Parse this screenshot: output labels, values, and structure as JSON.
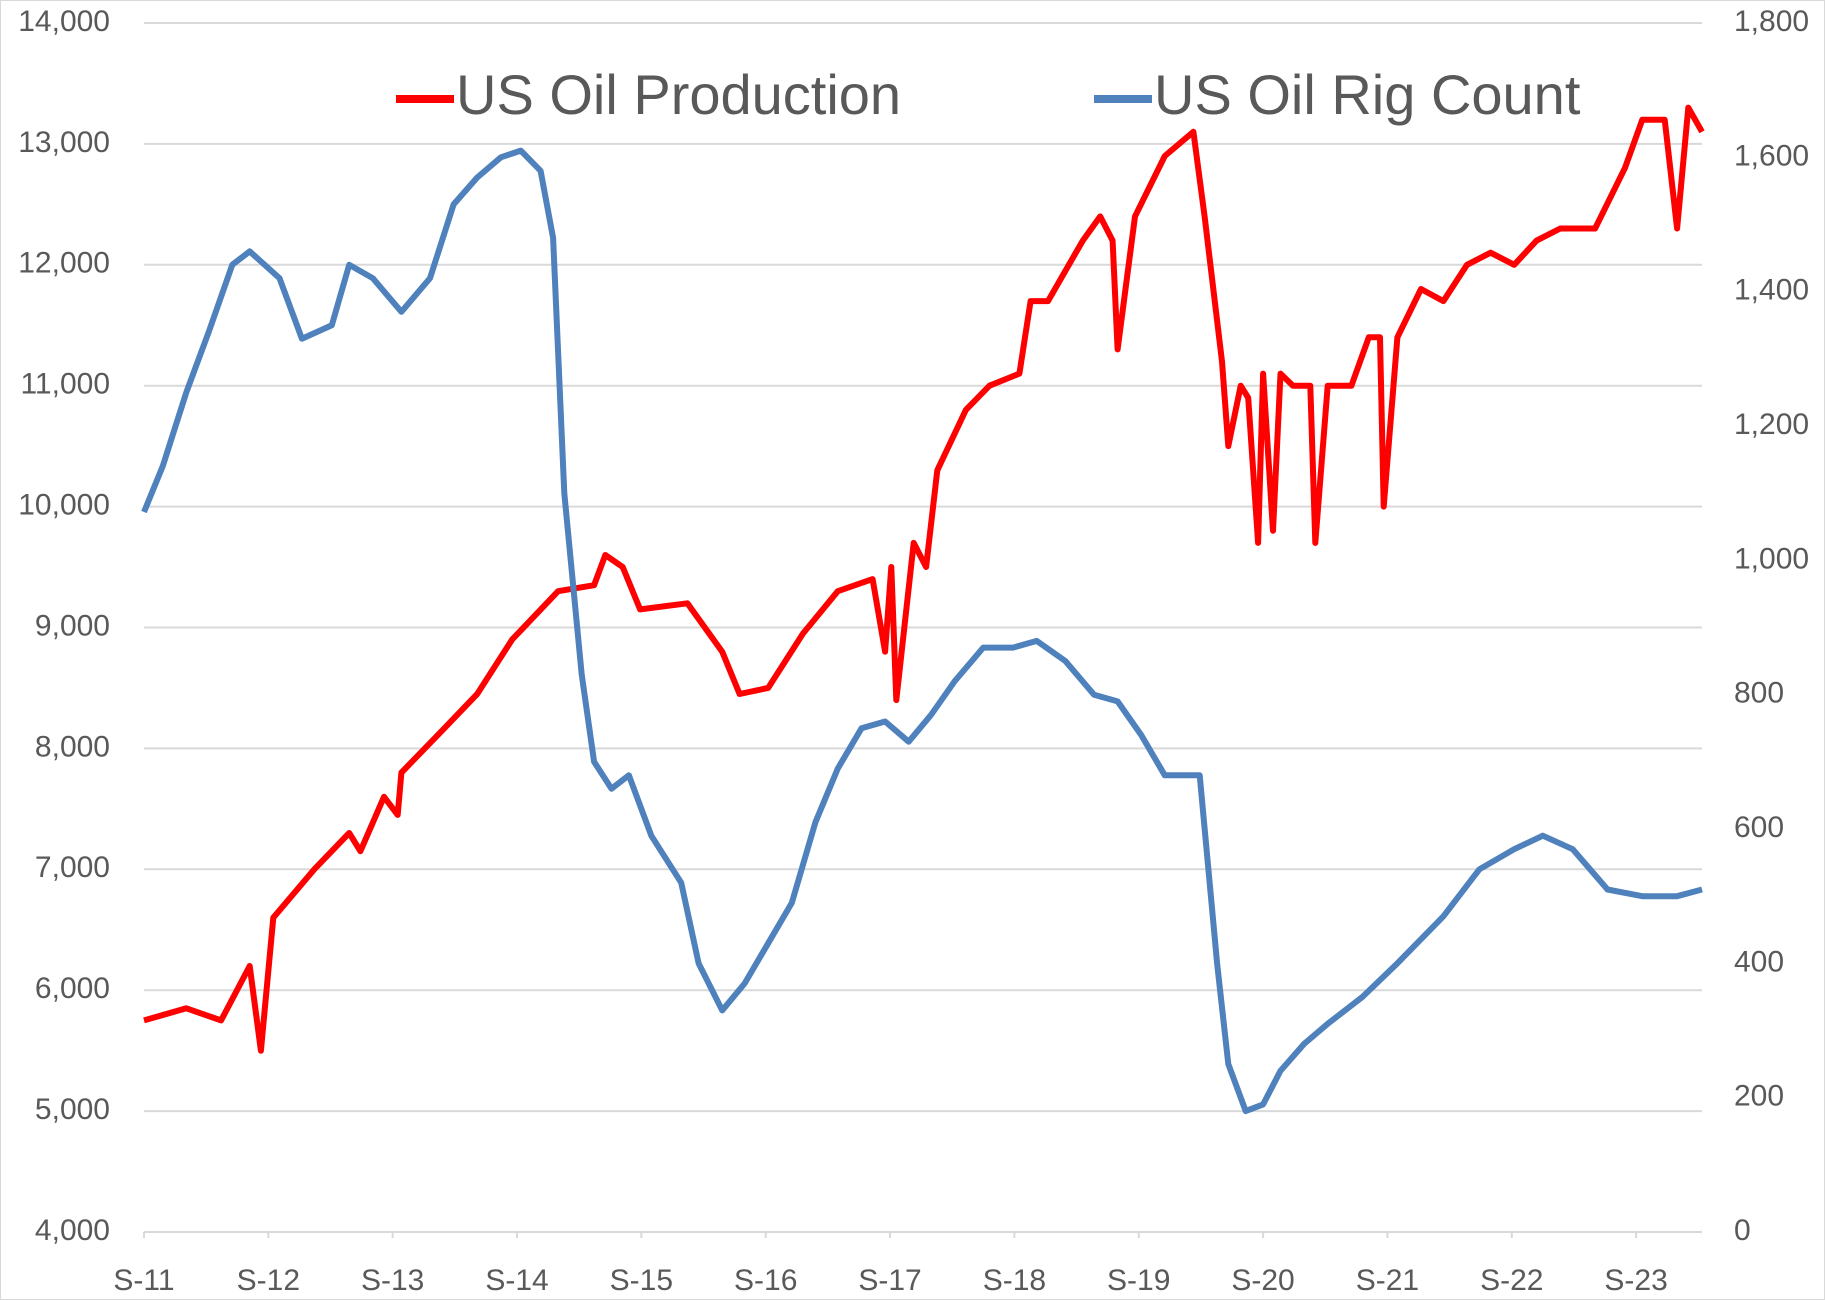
{
  "chart_data": {
    "type": "line",
    "series": [
      {
        "name": "US Oil Production",
        "color": "#ff0000",
        "axis": "y",
        "x": [
          2011.67,
          2012.01,
          2012.29,
          2012.52,
          2012.61,
          2012.71,
          2013.04,
          2013.32,
          2013.41,
          2013.6,
          2013.71,
          2013.74,
          2014.07,
          2014.35,
          2014.63,
          2015.0,
          2015.29,
          2015.38,
          2015.52,
          2015.66,
          2016.04,
          2016.32,
          2016.46,
          2016.69,
          2016.97,
          2017.25,
          2017.53,
          2017.63,
          2017.68,
          2017.72,
          2017.86,
          2017.96,
          2018.05,
          2018.28,
          2018.47,
          2018.71,
          2018.8,
          2018.94,
          2019.22,
          2019.36,
          2019.46,
          2019.5,
          2019.64,
          2019.88,
          2020.11,
          2020.2,
          2020.34,
          2020.39,
          2020.49,
          2020.55,
          2020.63,
          2020.67,
          2020.75,
          2020.81,
          2020.91,
          2021.05,
          2021.09,
          2021.19,
          2021.38,
          2021.52,
          2021.61,
          2021.64,
          2021.75,
          2021.94,
          2022.12,
          2022.31,
          2022.5,
          2022.69,
          2022.87,
          2023.06,
          2023.34,
          2023.58,
          2023.72,
          2023.9,
          2024.0,
          2024.09,
          2024.2
        ],
        "values": [
          5750,
          5850,
          5750,
          6200,
          5500,
          6600,
          7000,
          7300,
          7150,
          7600,
          7450,
          7800,
          8150,
          8450,
          8900,
          9300,
          9350,
          9600,
          9500,
          9150,
          9200,
          8800,
          8450,
          8500,
          8950,
          9300,
          9400,
          8800,
          9500,
          8400,
          9700,
          9500,
          10300,
          10800,
          11000,
          11100,
          11700,
          11700,
          12200,
          12400,
          12200,
          11300,
          12400,
          12900,
          13100,
          12400,
          11200,
          10500,
          11000,
          10900,
          9700,
          11100,
          9800,
          11100,
          11000,
          11000,
          9700,
          11000,
          11000,
          11400,
          11400,
          10000,
          11400,
          11800,
          11700,
          12000,
          12100,
          12000,
          12200,
          12300,
          12300,
          12800,
          13200,
          13200,
          12300,
          13300,
          13100
        ]
      },
      {
        "name": "US Oil Rig Count",
        "color": "#4f81bd",
        "axis": "y2",
        "x": [
          2011.67,
          2011.82,
          2012.01,
          2012.19,
          2012.38,
          2012.52,
          2012.76,
          2012.94,
          2013.18,
          2013.32,
          2013.51,
          2013.74,
          2013.97,
          2014.16,
          2014.35,
          2014.54,
          2014.7,
          2014.86,
          2014.96,
          2015.05,
          2015.19,
          2015.29,
          2015.43,
          2015.57,
          2015.75,
          2015.99,
          2016.13,
          2016.32,
          2016.5,
          2016.69,
          2016.88,
          2017.07,
          2017.25,
          2017.44,
          2017.63,
          2017.82,
          2018.0,
          2018.19,
          2018.42,
          2018.66,
          2018.85,
          2019.08,
          2019.31,
          2019.5,
          2019.69,
          2019.88,
          2020.16,
          2020.3,
          2020.39,
          2020.53,
          2020.67,
          2020.81,
          2021.0,
          2021.19,
          2021.47,
          2021.75,
          2022.12,
          2022.41,
          2022.69,
          2022.92,
          2023.16,
          2023.44,
          2023.72,
          2024.0,
          2024.2
        ],
        "values": [
          1072,
          1140,
          1250,
          1340,
          1440,
          1460,
          1420,
          1330,
          1350,
          1440,
          1420,
          1370,
          1420,
          1530,
          1570,
          1600,
          1610,
          1580,
          1480,
          1100,
          830,
          700,
          660,
          680,
          590,
          520,
          400,
          330,
          370,
          430,
          490,
          610,
          690,
          750,
          760,
          730,
          770,
          820,
          870,
          870,
          880,
          850,
          800,
          790,
          740,
          680,
          680,
          400,
          250,
          180,
          190,
          240,
          280,
          310,
          350,
          400,
          470,
          540,
          570,
          590,
          570,
          510,
          500,
          500,
          510
        ]
      }
    ],
    "xlim": [
      2011.67,
      2024.2
    ],
    "xticks": [
      {
        "value": 2011.67,
        "label": "S-11"
      },
      {
        "value": 2012.67,
        "label": "S-12"
      },
      {
        "value": 2013.67,
        "label": "S-13"
      },
      {
        "value": 2014.67,
        "label": "S-14"
      },
      {
        "value": 2015.67,
        "label": "S-15"
      },
      {
        "value": 2016.67,
        "label": "S-16"
      },
      {
        "value": 2017.67,
        "label": "S-17"
      },
      {
        "value": 2018.67,
        "label": "S-18"
      },
      {
        "value": 2019.67,
        "label": "S-19"
      },
      {
        "value": 2020.67,
        "label": "S-20"
      },
      {
        "value": 2021.67,
        "label": "S-21"
      },
      {
        "value": 2022.67,
        "label": "S-22"
      },
      {
        "value": 2023.67,
        "label": "S-23"
      }
    ],
    "ylim": [
      4000,
      14000
    ],
    "yticks": [
      {
        "value": 4000,
        "label": "4,000"
      },
      {
        "value": 5000,
        "label": "5,000"
      },
      {
        "value": 6000,
        "label": "6,000"
      },
      {
        "value": 7000,
        "label": "7,000"
      },
      {
        "value": 8000,
        "label": "8,000"
      },
      {
        "value": 9000,
        "label": "9,000"
      },
      {
        "value": 10000,
        "label": "10,000"
      },
      {
        "value": 11000,
        "label": "11,000"
      },
      {
        "value": 12000,
        "label": "12,000"
      },
      {
        "value": 13000,
        "label": "13,000"
      },
      {
        "value": 14000,
        "label": "14,000"
      }
    ],
    "y2lim": [
      0,
      1800
    ],
    "y2ticks": [
      0,
      200,
      400,
      600,
      800,
      {
        "value": 1000,
        "label": "1,000"
      },
      {
        "value": 1200,
        "label": "1,200"
      },
      {
        "value": 1400,
        "label": "1,400"
      },
      {
        "value": 1600,
        "label": "1,600"
      },
      {
        "value": 1800,
        "label": "1,800"
      }
    ],
    "grid": true,
    "legend": "top"
  }
}
